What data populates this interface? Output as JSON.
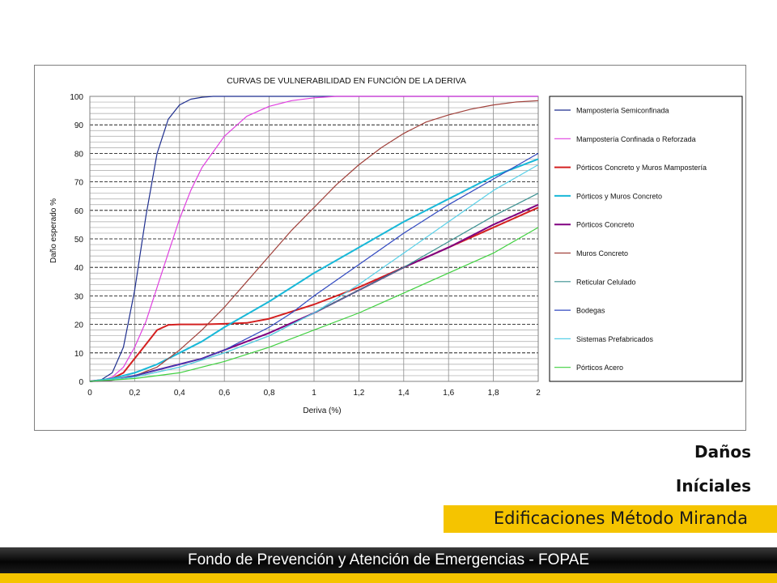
{
  "chart_data": {
    "type": "line",
    "title": "CURVAS DE VULNERABILIDAD EN FUNCIÓN DE LA DERIVA",
    "xlabel": "Deriva (%)",
    "ylabel": "Daño esperado %",
    "xlim": [
      0,
      2
    ],
    "ylim": [
      0,
      100
    ],
    "x_ticks": [
      "0",
      "0,2",
      "0,4",
      "0,6",
      "0,8",
      "1",
      "1,2",
      "1,4",
      "1,6",
      "1,8",
      "2"
    ],
    "y_ticks": [
      "0",
      "10",
      "20",
      "30",
      "40",
      "50",
      "60",
      "70",
      "80",
      "90",
      "100"
    ],
    "grid": true,
    "legend_position": "right",
    "series": [
      {
        "name": "Mampostería Semiconfinada",
        "color": "#1f2f8f",
        "x": [
          0,
          0.05,
          0.1,
          0.15,
          0.2,
          0.25,
          0.3,
          0.35,
          0.4,
          0.45,
          0.5,
          0.55,
          0.6,
          2
        ],
        "y": [
          0,
          0.5,
          3,
          12,
          32,
          58,
          80,
          92,
          97,
          99,
          99.7,
          100,
          100,
          100
        ]
      },
      {
        "name": "Mampostería Confinada o Reforzada",
        "color": "#e040e0",
        "x": [
          0,
          0.05,
          0.1,
          0.15,
          0.2,
          0.25,
          0.3,
          0.35,
          0.4,
          0.45,
          0.5,
          0.6,
          0.7,
          0.8,
          0.9,
          1.0,
          1.1,
          2
        ],
        "y": [
          0,
          0.3,
          1.5,
          5,
          12,
          21,
          33,
          45,
          57,
          67,
          75,
          86,
          93,
          96.5,
          98.5,
          99.5,
          100,
          100
        ]
      },
      {
        "name": "Pórticos Concreto y Muros Mampostería",
        "color": "#d42020",
        "x": [
          0,
          0.1,
          0.15,
          0.2,
          0.25,
          0.3,
          0.35,
          0.4,
          0.5,
          0.6,
          0.7,
          0.8,
          1.0,
          1.2,
          1.4,
          1.6,
          1.8,
          2.0
        ],
        "y": [
          0,
          1,
          3,
          8,
          13,
          18,
          19.8,
          20,
          20,
          20.2,
          20.5,
          22,
          27,
          33,
          40,
          47,
          54,
          61
        ]
      },
      {
        "name": "Pórticos y Muros Concreto",
        "color": "#18b8d8",
        "x": [
          0,
          0.1,
          0.2,
          0.3,
          0.4,
          0.5,
          0.6,
          0.8,
          1.0,
          1.2,
          1.4,
          1.6,
          1.8,
          2.0
        ],
        "y": [
          0,
          1,
          3,
          6,
          10,
          14,
          19,
          28,
          38,
          47,
          56,
          64,
          72,
          78
        ]
      },
      {
        "name": "Pórticos Concreto",
        "color": "#800080",
        "x": [
          0,
          0.1,
          0.2,
          0.3,
          0.4,
          0.5,
          0.6,
          0.8,
          1.0,
          1.2,
          1.4,
          1.6,
          1.8,
          2.0
        ],
        "y": [
          0,
          0.5,
          2,
          4,
          6,
          8,
          11,
          17,
          24,
          32,
          40,
          47,
          55,
          62
        ]
      },
      {
        "name": "Muros Concreto",
        "color": "#a0403a",
        "x": [
          0,
          0.1,
          0.2,
          0.3,
          0.4,
          0.5,
          0.6,
          0.7,
          0.8,
          0.9,
          1.0,
          1.1,
          1.2,
          1.3,
          1.4,
          1.5,
          1.6,
          1.7,
          1.8,
          1.9,
          2.0
        ],
        "y": [
          0,
          0.5,
          2,
          5,
          11,
          18,
          26,
          35,
          44,
          53,
          61,
          69,
          76,
          82,
          87,
          91,
          93.5,
          95.5,
          97,
          98,
          98.5
        ]
      },
      {
        "name": "Reticular Celulado",
        "color": "#3a9090",
        "x": [
          0,
          0.2,
          0.4,
          0.6,
          0.8,
          1.0,
          1.2,
          1.4,
          1.6,
          1.8,
          2.0
        ],
        "y": [
          0,
          1.5,
          5,
          10,
          16,
          24,
          32,
          40,
          49,
          58,
          66
        ]
      },
      {
        "name": "Bodegas",
        "color": "#3048c0",
        "x": [
          0,
          0.1,
          0.2,
          0.3,
          0.4,
          0.5,
          0.6,
          0.7,
          0.8,
          0.9,
          1.0,
          1.2,
          1.4,
          1.6,
          1.8,
          2.0
        ],
        "y": [
          0,
          0.5,
          2,
          4,
          6,
          8,
          11,
          15,
          19,
          24,
          30,
          41,
          52,
          62,
          71,
          80
        ]
      },
      {
        "name": "Sistemas Prefabricados",
        "color": "#58d0e8",
        "x": [
          0,
          0.2,
          0.4,
          0.6,
          0.8,
          1.0,
          1.2,
          1.4,
          1.6,
          1.8,
          2.0
        ],
        "y": [
          0,
          1.5,
          5,
          10,
          16,
          24,
          34,
          45,
          56,
          67,
          76
        ]
      },
      {
        "name": "Pórticos Acero",
        "color": "#40d040",
        "x": [
          0,
          0.2,
          0.4,
          0.6,
          0.8,
          1.0,
          1.2,
          1.4,
          1.6,
          1.8,
          2.0
        ],
        "y": [
          0,
          1,
          3,
          7,
          12,
          18,
          24,
          31,
          38,
          45,
          54
        ]
      }
    ]
  },
  "slide": {
    "title_line1": "Daños",
    "title_line2": "Iníciales",
    "subtitle": "Edificaciones Método Miranda",
    "footer": "Fondo de Prevención y Atención de Emergencias - FOPAE",
    "accent_color": "#f5c400"
  }
}
